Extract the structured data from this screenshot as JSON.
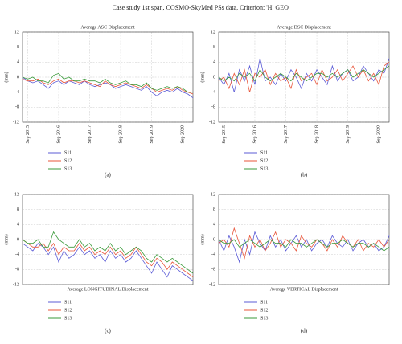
{
  "title": "Case study 1st span, COSMO-SkyMed PSs data, Criterion: 'H_GEO'",
  "chart_data": [
    {
      "type": "line",
      "title": "Average ASC Displacement",
      "title_position": "top",
      "panel_label": "(a)",
      "ylabel": "(mm)",
      "x": [
        "2015-07",
        "2015-09",
        "2015-11",
        "2016-01",
        "2016-03",
        "2016-05",
        "2016-07",
        "2016-09",
        "2016-11",
        "2017-01",
        "2017-03",
        "2017-05",
        "2017-07",
        "2017-09",
        "2017-11",
        "2018-01",
        "2018-03",
        "2018-05",
        "2018-07",
        "2018-09",
        "2018-11",
        "2019-01",
        "2019-03",
        "2019-05",
        "2019-07",
        "2019-09",
        "2019-11",
        "2020-01",
        "2020-03",
        "2020-05",
        "2020-07",
        "2020-09",
        "2020-11",
        "2021-01"
      ],
      "xlim": [
        "2015-07",
        "2021-01"
      ],
      "xticks": [
        {
          "value": "2015-09",
          "label": "Sep 2015"
        },
        {
          "value": "2016-09",
          "label": "Sep 2016"
        },
        {
          "value": "2017-09",
          "label": "Sep 2017"
        },
        {
          "value": "2018-09",
          "label": "Sep 2018"
        },
        {
          "value": "2019-09",
          "label": "Sep 2019"
        },
        {
          "value": "2020-09",
          "label": "Sep 2020"
        }
      ],
      "ylim": [
        -12,
        12
      ],
      "yticks": [
        12,
        8,
        4,
        0,
        -4,
        -8,
        -12
      ],
      "grid": true,
      "legend": "below",
      "series": [
        {
          "name": "S11",
          "color": "#5b5bd6",
          "values": [
            0,
            -1,
            -1.5,
            -1,
            -2,
            -3,
            -1.5,
            -1,
            -2,
            -1,
            -1.5,
            -2,
            -1,
            -2,
            -2.5,
            -2,
            -1.5,
            -2,
            -3,
            -2.5,
            -2,
            -2.5,
            -3,
            -3.5,
            -2.5,
            -4,
            -5,
            -4,
            -3.5,
            -4,
            -3,
            -4,
            -4.5,
            -5.5
          ]
        },
        {
          "name": "S12",
          "color": "#e8553a",
          "values": [
            -0.5,
            -1,
            -1,
            -0.5,
            -1.5,
            -2,
            -1,
            -0.5,
            -1.5,
            -1,
            -1,
            -1.5,
            -1,
            -1.5,
            -2,
            -2.5,
            -1,
            -2,
            -2.5,
            -2,
            -1.5,
            -2,
            -2.5,
            -3,
            -2,
            -3,
            -4,
            -3.5,
            -3,
            -3.5,
            -2.5,
            -3.5,
            -4,
            -4.5
          ]
        },
        {
          "name": "S13",
          "color": "#3a9a3a",
          "values": [
            0,
            -0.5,
            0,
            -1,
            -1,
            -1.5,
            0.5,
            1,
            -0.5,
            0,
            -1,
            -1,
            -0.5,
            -1,
            -1,
            -1.5,
            -0.5,
            -1.5,
            -2,
            -1.5,
            -1,
            -2,
            -2,
            -2.5,
            -1.5,
            -3,
            -3.5,
            -3,
            -2.5,
            -3,
            -2.5,
            -3,
            -4,
            -4
          ]
        }
      ]
    },
    {
      "type": "line",
      "title": "Average DSC Displacement",
      "title_position": "top",
      "panel_label": "(b)",
      "ylabel": "(mm)",
      "x": [
        "2015-07",
        "2015-09",
        "2015-11",
        "2016-01",
        "2016-03",
        "2016-05",
        "2016-07",
        "2016-09",
        "2016-11",
        "2017-01",
        "2017-03",
        "2017-05",
        "2017-07",
        "2017-09",
        "2017-11",
        "2018-01",
        "2018-03",
        "2018-05",
        "2018-07",
        "2018-09",
        "2018-11",
        "2019-01",
        "2019-03",
        "2019-05",
        "2019-07",
        "2019-09",
        "2019-11",
        "2020-01",
        "2020-03",
        "2020-05",
        "2020-07",
        "2020-09",
        "2020-11",
        "2021-01"
      ],
      "xlim": [
        "2015-07",
        "2021-01"
      ],
      "xticks": [
        {
          "value": "2015-09",
          "label": "Sep 2015"
        },
        {
          "value": "2016-09",
          "label": "Sep 2016"
        },
        {
          "value": "2017-09",
          "label": "Sep 2017"
        },
        {
          "value": "2018-09",
          "label": "Sep 2018"
        },
        {
          "value": "2019-09",
          "label": "Sep 2019"
        },
        {
          "value": "2020-09",
          "label": "Sep 2020"
        }
      ],
      "ylim": [
        -12,
        12
      ],
      "yticks": [
        12,
        8,
        4,
        0,
        -4,
        -8,
        -12
      ],
      "grid": true,
      "legend": "below",
      "series": [
        {
          "name": "S11",
          "color": "#5b5bd6",
          "values": [
            0,
            -2,
            1,
            -4,
            2,
            -1,
            3,
            -2,
            5,
            -1,
            0,
            -2,
            1,
            -1,
            2,
            0,
            -3,
            1,
            -1,
            2,
            0,
            -2,
            3,
            -1,
            1,
            2,
            -1,
            0,
            3,
            1,
            -1,
            2,
            1,
            5
          ]
        },
        {
          "name": "S12",
          "color": "#e8553a",
          "values": [
            -1,
            0,
            -3,
            1,
            -2,
            2,
            -4,
            1,
            0,
            2,
            -2,
            1,
            -1,
            0,
            -3,
            2,
            -1,
            0,
            1,
            -2,
            2,
            -1,
            0,
            2,
            -1,
            1,
            3,
            0,
            2,
            -1,
            1,
            -2,
            3,
            4
          ]
        },
        {
          "name": "S13",
          "color": "#3a9a3a",
          "values": [
            0,
            -1,
            0,
            -1,
            1,
            0,
            1,
            -1,
            2,
            0,
            -1,
            0,
            1,
            0,
            -1,
            1,
            0,
            -1,
            0,
            1,
            1,
            0,
            1,
            0,
            1,
            2,
            0,
            1,
            2,
            1,
            0,
            1,
            2,
            3
          ]
        }
      ]
    },
    {
      "type": "line",
      "title": "Average LONGITUDINAL Displacement",
      "title_position": "bottom",
      "panel_label": "(c)",
      "ylabel": "(mm)",
      "x": [
        "2015-07",
        "2015-09",
        "2015-11",
        "2016-01",
        "2016-03",
        "2016-05",
        "2016-07",
        "2016-09",
        "2016-11",
        "2017-01",
        "2017-03",
        "2017-05",
        "2017-07",
        "2017-09",
        "2017-11",
        "2018-01",
        "2018-03",
        "2018-05",
        "2018-07",
        "2018-09",
        "2018-11",
        "2019-01",
        "2019-03",
        "2019-05",
        "2019-07",
        "2019-09",
        "2019-11",
        "2020-01",
        "2020-03",
        "2020-05",
        "2020-07",
        "2020-09",
        "2020-11",
        "2021-01"
      ],
      "xlim": [
        "2015-07",
        "2021-01"
      ],
      "ylim": [
        -12,
        12
      ],
      "yticks": [
        12,
        8,
        4,
        0,
        -4,
        -8,
        -12
      ],
      "grid": true,
      "legend": "below",
      "series": [
        {
          "name": "S11",
          "color": "#5b5bd6",
          "values": [
            -1,
            -2,
            -3,
            -1,
            -2,
            -4,
            -2,
            -6,
            -3,
            -5,
            -4,
            -2,
            -4,
            -3,
            -5,
            -4,
            -6,
            -3,
            -5,
            -4,
            -6,
            -5,
            -3,
            -5,
            -7,
            -9,
            -6,
            -8,
            -10,
            -7,
            -8,
            -9,
            -10,
            -11
          ]
        },
        {
          "name": "S12",
          "color": "#e8553a",
          "values": [
            0,
            -1,
            -2,
            -2,
            -1,
            -3,
            -1,
            -4,
            -2,
            -3,
            -3,
            -1,
            -3,
            -2,
            -4,
            -3,
            -4,
            -2,
            -4,
            -3,
            -5,
            -4,
            -2,
            -4,
            -6,
            -7,
            -5,
            -6,
            -8,
            -6,
            -7,
            -8,
            -9,
            -10
          ]
        },
        {
          "name": "S13",
          "color": "#3a9a3a",
          "values": [
            0,
            -1,
            -1,
            0,
            -2,
            -2,
            2,
            0,
            -1,
            -2,
            -2,
            0,
            -2,
            -1,
            -3,
            -2,
            -3,
            -1,
            -3,
            -2,
            -4,
            -3,
            -2,
            -3,
            -5,
            -6,
            -4,
            -5,
            -6,
            -5,
            -6,
            -7,
            -8,
            -9
          ]
        }
      ]
    },
    {
      "type": "line",
      "title": "Average VERTICAL Displacement",
      "title_position": "bottom",
      "panel_label": "(d)",
      "ylabel": "(mm)",
      "x": [
        "2015-07",
        "2015-09",
        "2015-11",
        "2016-01",
        "2016-03",
        "2016-05",
        "2016-07",
        "2016-09",
        "2016-11",
        "2017-01",
        "2017-03",
        "2017-05",
        "2017-07",
        "2017-09",
        "2017-11",
        "2018-01",
        "2018-03",
        "2018-05",
        "2018-07",
        "2018-09",
        "2018-11",
        "2019-01",
        "2019-03",
        "2019-05",
        "2019-07",
        "2019-09",
        "2019-11",
        "2020-01",
        "2020-03",
        "2020-05",
        "2020-07",
        "2020-09",
        "2020-11",
        "2021-01"
      ],
      "xlim": [
        "2015-07",
        "2021-01"
      ],
      "ylim": [
        -12,
        12
      ],
      "yticks": [
        12,
        8,
        4,
        0,
        -4,
        -8,
        -12
      ],
      "grid": true,
      "legend": "below",
      "series": [
        {
          "name": "S11",
          "color": "#5b5bd6",
          "values": [
            0,
            -3,
            1,
            -2,
            -6,
            0,
            -4,
            2,
            -1,
            -3,
            1,
            -2,
            0,
            -3,
            -1,
            1,
            -2,
            0,
            -3,
            -1,
            0,
            -2,
            1,
            -1,
            -2,
            0,
            -3,
            -1,
            0,
            -2,
            -1,
            -3,
            -2,
            1
          ]
        },
        {
          "name": "S12",
          "color": "#e8553a",
          "values": [
            -1,
            0,
            -2,
            3,
            -1,
            -5,
            1,
            -2,
            0,
            -3,
            -1,
            2,
            -2,
            0,
            -1,
            -3,
            1,
            -1,
            -2,
            0,
            -1,
            -3,
            0,
            -2,
            1,
            -1,
            -2,
            0,
            -3,
            -1,
            -2,
            0,
            -2,
            0
          ]
        },
        {
          "name": "S13",
          "color": "#3a9a3a",
          "values": [
            0,
            -1,
            -1,
            0,
            -2,
            -1,
            0,
            -1,
            -2,
            -1,
            0,
            -1,
            -1,
            -2,
            0,
            -1,
            -1,
            -2,
            -1,
            0,
            -1,
            -2,
            -1,
            -1,
            0,
            -1,
            -2,
            -1,
            -1,
            -2,
            -1,
            -2,
            -3,
            -2
          ]
        }
      ]
    }
  ]
}
